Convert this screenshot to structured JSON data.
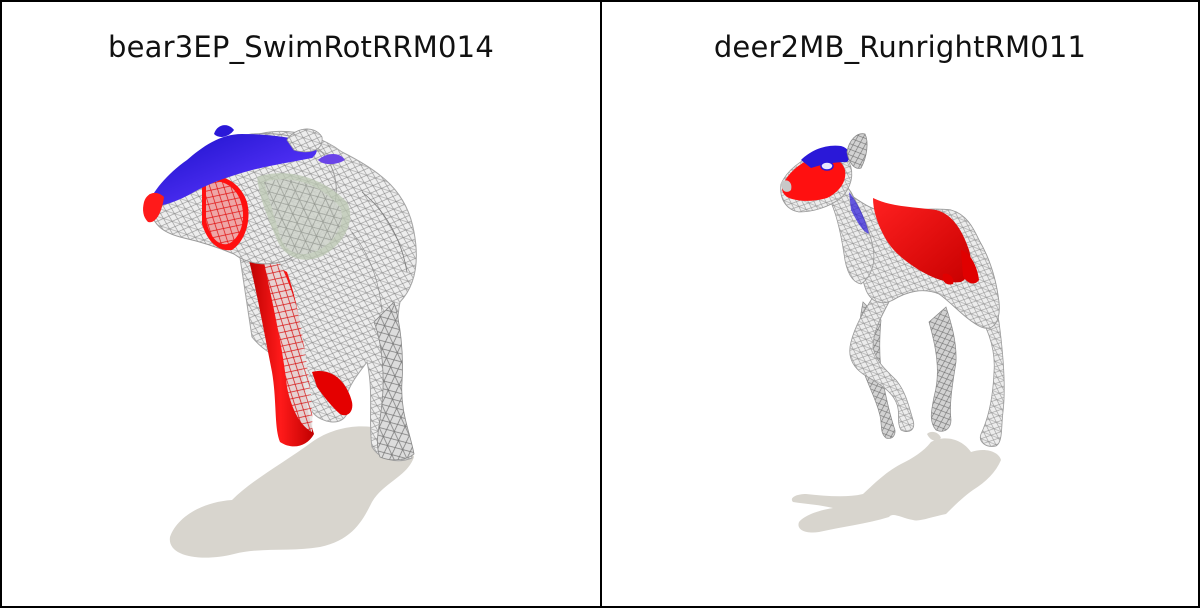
{
  "panels": [
    {
      "title": "bear3EP_SwimRotRRM014",
      "model": "bear-mesh"
    },
    {
      "title": "deer2MB_RunrightRM011",
      "model": "deer-mesh"
    }
  ],
  "colors": {
    "background": "#ffffff",
    "border": "#000000",
    "shadow": "#d6d3cc",
    "mesh_fill": "#e8e8e8",
    "wire": "#9a9a9a",
    "highlight_red": "#ee0000",
    "highlight_blue": "#2a18d8",
    "highlight_green": "#b8c8a8"
  }
}
